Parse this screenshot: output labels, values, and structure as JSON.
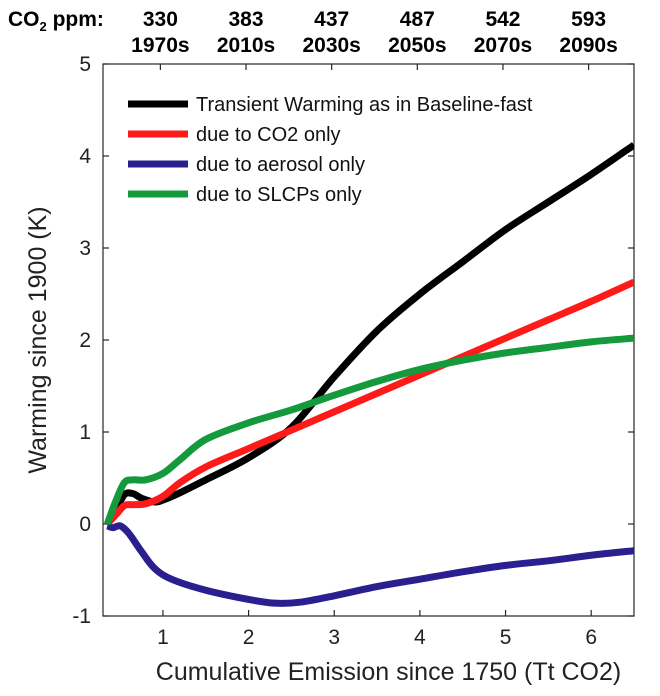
{
  "chart_data": {
    "type": "line",
    "xlabel": "Cumulative Emission since 1750 (Tt CO2)",
    "ylabel": "Warming since 1900 (K)",
    "xlim": [
      0.3,
      6.5
    ],
    "ylim": [
      -1,
      5
    ],
    "xticks": [
      1,
      2,
      3,
      4,
      5,
      6
    ],
    "yticks": [
      -1,
      0,
      1,
      2,
      3,
      4,
      5
    ],
    "top_axis": {
      "label_main": "CO",
      "label_sub": "2",
      "label_tail": " ppm:",
      "ticks": [
        {
          "x": 0.97,
          "ppm": "330",
          "decade": "1970s"
        },
        {
          "x": 1.97,
          "ppm": "383",
          "decade": "2010s"
        },
        {
          "x": 2.97,
          "ppm": "437",
          "decade": "2030s"
        },
        {
          "x": 3.97,
          "ppm": "487",
          "decade": "2050s"
        },
        {
          "x": 4.97,
          "ppm": "542",
          "decade": "2070s"
        },
        {
          "x": 5.97,
          "ppm": "593",
          "decade": "2090s"
        }
      ]
    },
    "legend_position": "top-left",
    "series": [
      {
        "name": "Transient Warming as in Baseline-fast",
        "color": "#000000",
        "points": [
          [
            0.35,
            0.0
          ],
          [
            0.45,
            0.15
          ],
          [
            0.55,
            0.32
          ],
          [
            0.65,
            0.33
          ],
          [
            0.75,
            0.28
          ],
          [
            0.9,
            0.24
          ],
          [
            1.0,
            0.26
          ],
          [
            1.2,
            0.34
          ],
          [
            1.5,
            0.48
          ],
          [
            2.0,
            0.72
          ],
          [
            2.5,
            1.05
          ],
          [
            3.0,
            1.6
          ],
          [
            3.5,
            2.1
          ],
          [
            4.0,
            2.5
          ],
          [
            4.5,
            2.85
          ],
          [
            5.0,
            3.2
          ],
          [
            5.5,
            3.5
          ],
          [
            6.0,
            3.8
          ],
          [
            6.5,
            4.12
          ]
        ]
      },
      {
        "name": "due to CO2 only",
        "color": "#ff1a1a",
        "points": [
          [
            0.35,
            0.0
          ],
          [
            0.45,
            0.1
          ],
          [
            0.55,
            0.2
          ],
          [
            0.65,
            0.21
          ],
          [
            0.8,
            0.22
          ],
          [
            1.0,
            0.3
          ],
          [
            1.2,
            0.45
          ],
          [
            1.5,
            0.62
          ],
          [
            2.0,
            0.82
          ],
          [
            2.5,
            1.02
          ],
          [
            3.0,
            1.22
          ],
          [
            3.5,
            1.42
          ],
          [
            4.0,
            1.62
          ],
          [
            4.5,
            1.82
          ],
          [
            5.0,
            2.02
          ],
          [
            5.5,
            2.22
          ],
          [
            6.0,
            2.42
          ],
          [
            6.5,
            2.63
          ]
        ]
      },
      {
        "name": "due to aerosol only",
        "color": "#2b1f8f",
        "points": [
          [
            0.35,
            -0.02
          ],
          [
            0.42,
            -0.04
          ],
          [
            0.5,
            -0.02
          ],
          [
            0.6,
            -0.1
          ],
          [
            0.75,
            -0.3
          ],
          [
            0.9,
            -0.48
          ],
          [
            1.1,
            -0.6
          ],
          [
            1.5,
            -0.72
          ],
          [
            2.0,
            -0.82
          ],
          [
            2.3,
            -0.86
          ],
          [
            2.6,
            -0.85
          ],
          [
            3.0,
            -0.78
          ],
          [
            3.5,
            -0.68
          ],
          [
            4.0,
            -0.6
          ],
          [
            4.5,
            -0.52
          ],
          [
            5.0,
            -0.45
          ],
          [
            5.5,
            -0.4
          ],
          [
            6.0,
            -0.34
          ],
          [
            6.5,
            -0.29
          ]
        ]
      },
      {
        "name": "due to SLCPs only",
        "color": "#149a3c",
        "points": [
          [
            0.35,
            0.0
          ],
          [
            0.45,
            0.25
          ],
          [
            0.55,
            0.45
          ],
          [
            0.65,
            0.48
          ],
          [
            0.8,
            0.48
          ],
          [
            1.0,
            0.55
          ],
          [
            1.2,
            0.7
          ],
          [
            1.5,
            0.92
          ],
          [
            2.0,
            1.1
          ],
          [
            2.5,
            1.24
          ],
          [
            3.0,
            1.4
          ],
          [
            3.5,
            1.55
          ],
          [
            4.0,
            1.68
          ],
          [
            4.5,
            1.78
          ],
          [
            5.0,
            1.86
          ],
          [
            5.5,
            1.92
          ],
          [
            6.0,
            1.98
          ],
          [
            6.5,
            2.02
          ]
        ]
      }
    ]
  }
}
